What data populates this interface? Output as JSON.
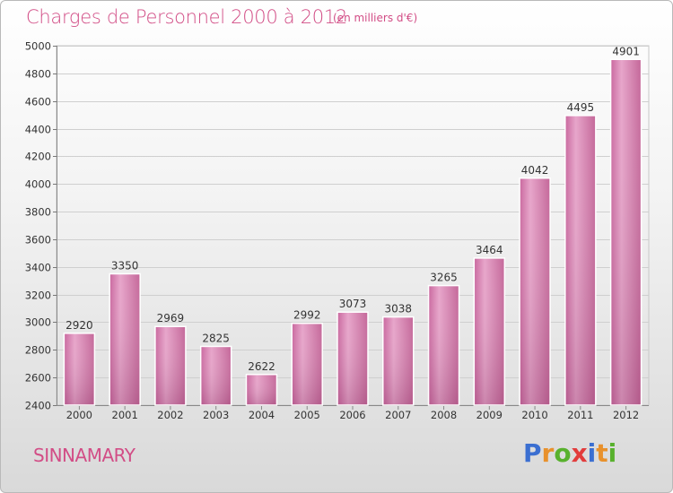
{
  "header": {
    "title": "Charges de Personnel 2000 à 2012",
    "subtitle": "(en milliers d'€)"
  },
  "footer": {
    "city": "SINNAMARY",
    "brand_letters": [
      "P",
      "r",
      "o",
      "x",
      "i",
      "t",
      "i"
    ],
    "brand_colors": [
      "#3b6fd1",
      "#e8912c",
      "#58b12d",
      "#e23c3c",
      "#3b6fd1",
      "#e8912c",
      "#58b12d"
    ]
  },
  "colors": {
    "bar": "#d87fb0",
    "bar_dark": "#b7578e",
    "bar_light": "#eeb2d4",
    "accent": "#d24d86"
  },
  "chart_data": {
    "type": "bar",
    "title": "Charges de Personnel 2000 à 2012",
    "categories": [
      "2000",
      "2001",
      "2002",
      "2003",
      "2004",
      "2005",
      "2006",
      "2007",
      "2008",
      "2009",
      "2010",
      "2011",
      "2012"
    ],
    "values": [
      2920,
      3350,
      2969,
      2825,
      2622,
      2992,
      3073,
      3038,
      3265,
      3464,
      4042,
      4495,
      4901
    ],
    "ylim": [
      2400,
      5000
    ],
    "yticks": [
      2400,
      2600,
      2800,
      3000,
      3200,
      3400,
      3600,
      3800,
      4000,
      4200,
      4400,
      4600,
      4800,
      5000
    ],
    "grid": true,
    "xlabel": "",
    "ylabel": ""
  }
}
